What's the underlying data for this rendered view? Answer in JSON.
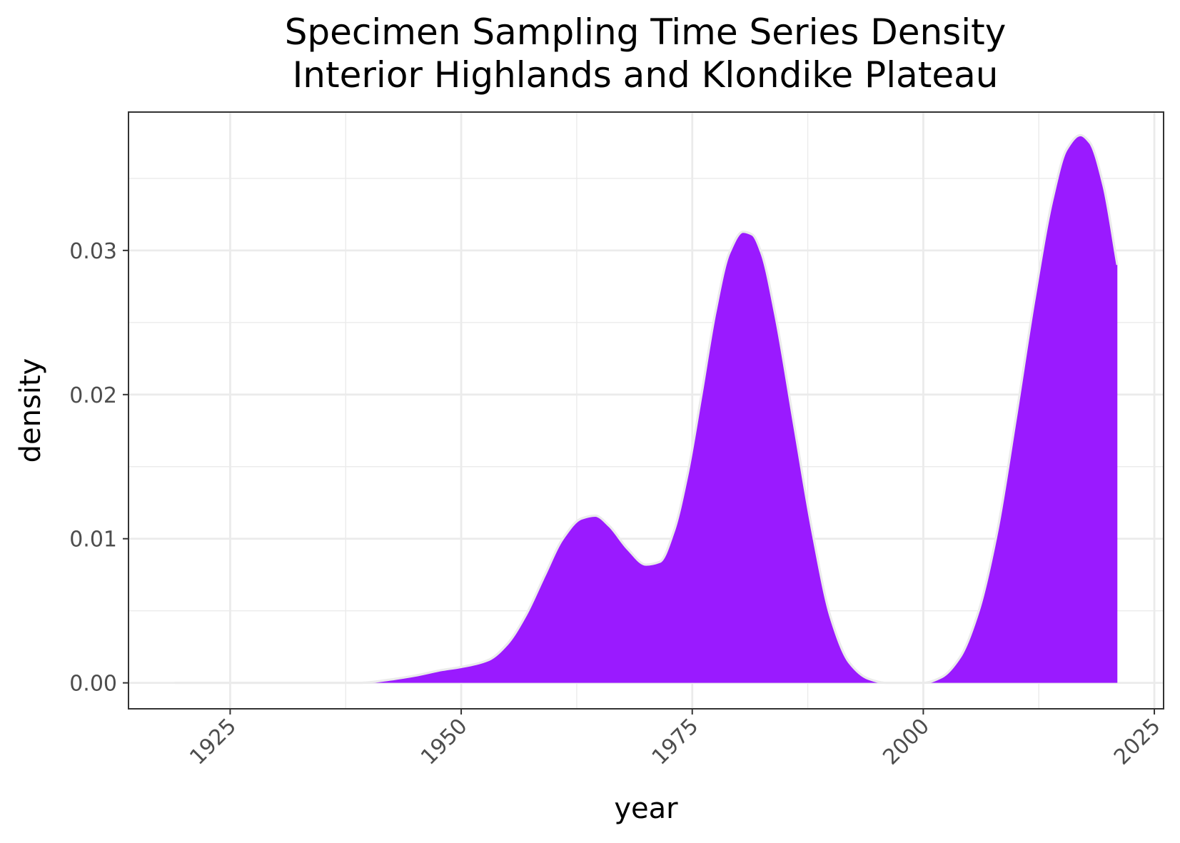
{
  "chart_data": {
    "type": "area",
    "title": "Specimen Sampling Time Series Density",
    "subtitle": "Interior Highlands and Klondike Plateau",
    "xlabel": "year",
    "ylabel": "density",
    "xlim": [
      1914,
      2026
    ],
    "ylim": [
      -0.0018,
      0.0396
    ],
    "x_ticks": [
      1925,
      1950,
      1975,
      2000,
      2025
    ],
    "x_tick_labels": [
      "1925",
      "1950",
      "1975",
      "2000",
      "2025"
    ],
    "x_minor_ticks": [
      1937.5,
      1962.5,
      1987.5,
      2012.5
    ],
    "y_ticks": [
      0.0,
      0.01,
      0.02,
      0.03
    ],
    "y_tick_labels": [
      "0.00",
      "0.01",
      "0.02",
      "0.03"
    ],
    "y_minor_ticks": [
      0.005,
      0.015,
      0.025,
      0.035
    ],
    "grid": true,
    "legend": "none",
    "fill_color": "#9a1aff",
    "outline_color": "#ebebeb",
    "series": [
      {
        "x": [
          1919,
          1925,
          1930,
          1935,
          1939,
          1942,
          1945,
          1948,
          1950,
          1953,
          1955,
          1957,
          1959,
          1961,
          1963,
          1964.5,
          1966,
          1968,
          1970,
          1971.5,
          1973,
          1974.5,
          1976,
          1977.5,
          1979,
          1980.5,
          1981.5,
          1982.5,
          1984,
          1986,
          1988,
          1990,
          1992,
          1994,
          1996,
          1998,
          2000,
          2002,
          2004,
          2006,
          2008,
          2010,
          2012,
          2014,
          2015.5,
          2017,
          2018,
          2019.5,
          2021
        ],
        "values": [
          0.0,
          0.0,
          0.0,
          0.0,
          0.0,
          0.0002,
          0.0005,
          0.0009,
          0.0011,
          0.0016,
          0.0027,
          0.0047,
          0.0074,
          0.01,
          0.0114,
          0.0116,
          0.0109,
          0.0093,
          0.0082,
          0.0084,
          0.0105,
          0.0145,
          0.02,
          0.0257,
          0.0298,
          0.0313,
          0.0311,
          0.0298,
          0.0255,
          0.018,
          0.0105,
          0.0045,
          0.0014,
          0.0003,
          0.0,
          0.0,
          0.0,
          0.0004,
          0.0018,
          0.005,
          0.0105,
          0.0183,
          0.0265,
          0.0336,
          0.037,
          0.038,
          0.0375,
          0.0345,
          0.029
        ]
      }
    ]
  }
}
